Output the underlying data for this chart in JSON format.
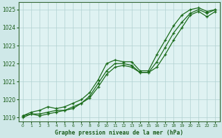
{
  "title": "Graphe pression niveau de la mer (hPa)",
  "bg_color": "#cfe8e8",
  "plot_bg_color": "#dff2f2",
  "grid_color": "#b0d0d0",
  "line_color": "#1a6b1a",
  "xlim": [
    -0.5,
    23.5
  ],
  "ylim": [
    1018.8,
    1025.4
  ],
  "yticks": [
    1019,
    1020,
    1021,
    1022,
    1023,
    1024,
    1025
  ],
  "xticks": [
    0,
    1,
    2,
    3,
    4,
    5,
    6,
    7,
    8,
    9,
    10,
    11,
    12,
    13,
    14,
    15,
    16,
    17,
    18,
    19,
    20,
    21,
    22,
    23
  ],
  "hours": [
    0,
    1,
    2,
    3,
    4,
    5,
    6,
    7,
    8,
    9,
    10,
    11,
    12,
    13,
    14,
    15,
    16,
    17,
    18,
    19,
    20,
    21,
    22,
    23
  ],
  "line_upper": [
    1019.1,
    1019.3,
    1019.4,
    1019.6,
    1019.5,
    1019.6,
    1019.8,
    1020.0,
    1020.4,
    1021.1,
    1022.0,
    1022.2,
    1022.1,
    1022.1,
    1021.6,
    1021.6,
    1022.5,
    1023.3,
    1024.1,
    1024.7,
    1025.0,
    1025.1,
    1024.9,
    1025.0
  ],
  "line_mid": [
    1019.1,
    1019.2,
    1019.2,
    1019.3,
    1019.4,
    1019.4,
    1019.6,
    1019.8,
    1020.2,
    1020.9,
    1021.6,
    1022.0,
    1022.0,
    1021.9,
    1021.5,
    1021.5,
    1022.1,
    1022.9,
    1023.7,
    1024.3,
    1024.8,
    1025.0,
    1024.8,
    1025.0
  ],
  "line_lower": [
    1019.0,
    1019.2,
    1019.1,
    1019.2,
    1019.3,
    1019.4,
    1019.5,
    1019.8,
    1020.1,
    1020.7,
    1021.4,
    1021.8,
    1021.9,
    1021.8,
    1021.5,
    1021.5,
    1021.8,
    1022.5,
    1023.3,
    1024.0,
    1024.7,
    1024.9,
    1024.6,
    1024.9
  ]
}
